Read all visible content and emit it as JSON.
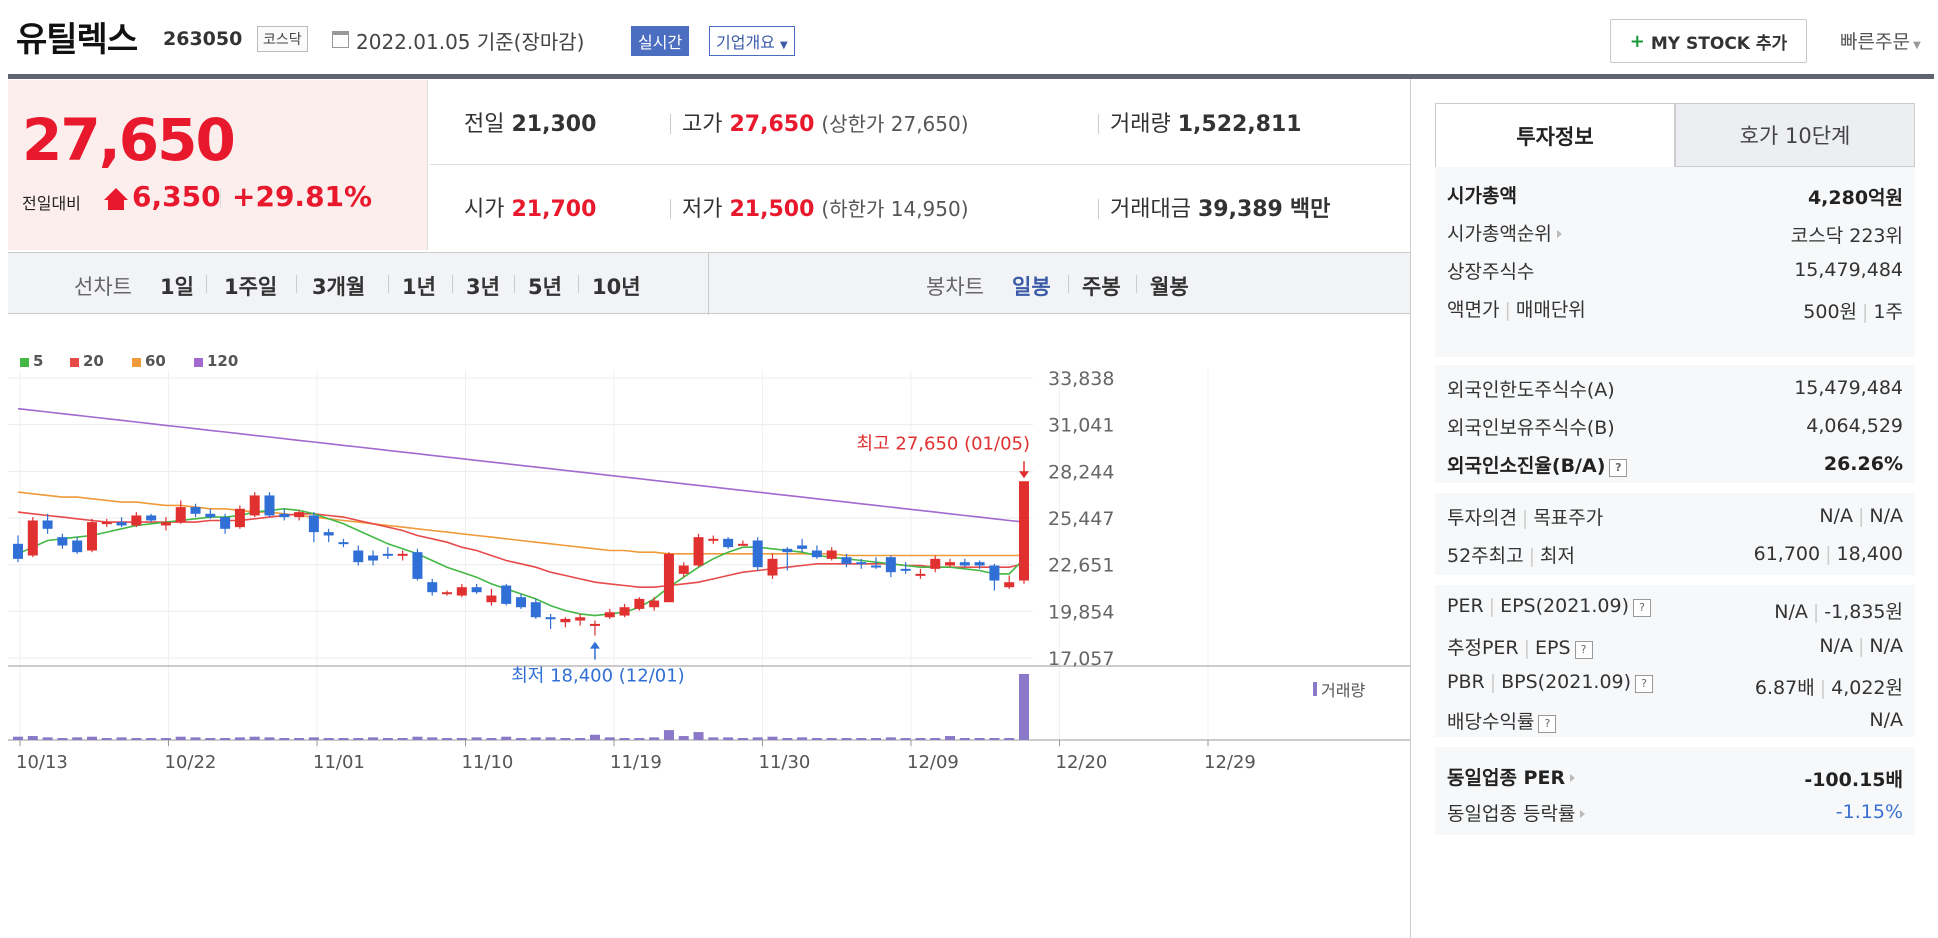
{
  "header": {
    "title": "유틸렉스",
    "code": "263050",
    "market": "코스닥",
    "date_text": "2022.01.05 기준(장마감)",
    "realtime": "실시간",
    "company_info": "기업개요",
    "mystock_button": "MY STOCK 추가",
    "quick_order": "빠른주문"
  },
  "price": {
    "current": "27,650",
    "change_label": "전일대비",
    "change": "6,350",
    "change_pct": "+29.81%"
  },
  "stats": {
    "prev_label": "전일",
    "prev": "21,300",
    "high_label": "고가",
    "high": "27,650",
    "high_limit": "(상한가 27,650)",
    "volume_label": "거래량",
    "volume": "1,522,811",
    "open_label": "시가",
    "open": "21,700",
    "low_label": "저가",
    "low": "21,500",
    "low_limit": "(하한가 14,950)",
    "amount_label": "거래대금",
    "amount": "39,389",
    "amount_unit": "백만"
  },
  "period_bar": {
    "line_label": "선차트",
    "line_periods": [
      "1일",
      "1주일",
      "3개월",
      "1년",
      "3년",
      "5년",
      "10년"
    ],
    "candle_label": "봉차트",
    "candle_periods": [
      "일봉",
      "주봉",
      "월봉"
    ],
    "active_candle": "일봉"
  },
  "chart_data": {
    "type": "candlestick",
    "legend": [
      "5",
      "20",
      "60",
      "120"
    ],
    "legend_colors": [
      "#44b844",
      "#e84a4a",
      "#f09a3a",
      "#a26ad0"
    ],
    "y_ticks": [
      33838,
      31041,
      28244,
      25447,
      22651,
      19854,
      17057
    ],
    "ylim": [
      17057,
      33838
    ],
    "x_ticks": [
      "10/13",
      "10/22",
      "11/01",
      "11/10",
      "11/19",
      "11/30",
      "12/09",
      "12/20",
      "12/29"
    ],
    "max_label": "최고 27,650 (01/05)",
    "min_label": "최저 18,400 (12/01)",
    "volume_label": "거래량",
    "candles": [
      [
        23900,
        23000,
        24400,
        22800
      ],
      [
        23200,
        25300,
        25500,
        23100
      ],
      [
        25300,
        24800,
        25700,
        24500
      ],
      [
        24300,
        23800,
        24500,
        23600
      ],
      [
        24100,
        23400,
        24300,
        23300
      ],
      [
        23500,
        25200,
        25400,
        23400
      ],
      [
        25100,
        25200,
        25400,
        24900
      ],
      [
        25200,
        25000,
        25500,
        24900
      ],
      [
        25000,
        25600,
        25800,
        24900
      ],
      [
        25600,
        25300,
        25700,
        25200
      ],
      [
        25000,
        25200,
        25500,
        24700
      ],
      [
        25200,
        26100,
        26500,
        25100
      ],
      [
        26100,
        25700,
        26300,
        25500
      ],
      [
        25700,
        25500,
        26000,
        25400
      ],
      [
        25500,
        24800,
        25700,
        24500
      ],
      [
        24900,
        26000,
        26200,
        24800
      ],
      [
        25600,
        26800,
        27000,
        25500
      ],
      [
        26800,
        25600,
        27000,
        25500
      ],
      [
        25700,
        25500,
        26000,
        25300
      ],
      [
        25500,
        25800,
        25900,
        25300
      ],
      [
        25600,
        24600,
        25800,
        24000
      ],
      [
        24600,
        24400,
        24800,
        24000
      ],
      [
        24000,
        23900,
        24200,
        23700
      ],
      [
        23500,
        22800,
        23800,
        22600
      ],
      [
        23200,
        22900,
        23500,
        22600
      ],
      [
        23300,
        23200,
        23700,
        23000
      ],
      [
        23300,
        23300,
        23500,
        22900
      ],
      [
        23400,
        21800,
        23600,
        21700
      ],
      [
        21600,
        21000,
        21800,
        20800
      ],
      [
        20900,
        21000,
        21100,
        20800
      ],
      [
        20800,
        21300,
        21500,
        20700
      ],
      [
        21300,
        21000,
        21500,
        20900
      ],
      [
        20400,
        20800,
        21200,
        20200
      ],
      [
        21400,
        20300,
        21500,
        20200
      ],
      [
        20700,
        20100,
        20900,
        20000
      ],
      [
        20400,
        19500,
        20600,
        19400
      ],
      [
        19500,
        19400,
        19700,
        18800
      ],
      [
        19200,
        19400,
        19500,
        18900
      ],
      [
        19300,
        19500,
        19700,
        19000
      ],
      [
        19000,
        19100,
        19300,
        18400
      ],
      [
        19500,
        19800,
        20000,
        19400
      ],
      [
        19600,
        20100,
        20300,
        19500
      ],
      [
        20000,
        20600,
        20700,
        19900
      ],
      [
        20100,
        20500,
        20700,
        19900
      ],
      [
        20400,
        23300,
        23400,
        20400
      ],
      [
        22100,
        22600,
        22800,
        21900
      ],
      [
        22600,
        24300,
        24500,
        22500
      ],
      [
        24100,
        24200,
        24400,
        23900
      ],
      [
        24200,
        23700,
        24300,
        23600
      ],
      [
        23900,
        23900,
        24100,
        23800
      ],
      [
        24100,
        22500,
        24300,
        22300
      ],
      [
        22000,
        23000,
        23300,
        21800
      ],
      [
        23600,
        23400,
        23700,
        22300
      ],
      [
        23800,
        23600,
        24200,
        23400
      ],
      [
        23500,
        23100,
        23800,
        23000
      ],
      [
        23000,
        23500,
        23700,
        22900
      ],
      [
        23100,
        22700,
        23300,
        22500
      ],
      [
        22800,
        22700,
        23000,
        22400
      ],
      [
        22600,
        22500,
        23100,
        22400
      ],
      [
        23100,
        22200,
        23200,
        21900
      ],
      [
        22400,
        22300,
        22800,
        22100
      ],
      [
        22000,
        22100,
        22400,
        21800
      ],
      [
        22400,
        23000,
        23200,
        22200
      ],
      [
        22600,
        22800,
        23000,
        22500
      ],
      [
        22800,
        22600,
        23000,
        22500
      ],
      [
        22800,
        22600,
        22900,
        22400
      ],
      [
        22600,
        21700,
        22700,
        21100
      ],
      [
        21300,
        21600,
        22000,
        21200
      ],
      [
        21700,
        27650,
        27650,
        21500
      ]
    ],
    "ma5": [
      23300,
      23700,
      24100,
      24200,
      24300,
      24400,
      24600,
      24800,
      25000,
      25100,
      25200,
      25300,
      25400,
      25500,
      25500,
      25600,
      25800,
      25900,
      26000,
      25900,
      25700,
      25400,
      25100,
      24700,
      24300,
      23900,
      23600,
      23300,
      22900,
      22500,
      22200,
      21900,
      21500,
      21200,
      20900,
      20600,
      20200,
      19900,
      19700,
      19600,
      19700,
      19800,
      20100,
      20600,
      21300,
      21900,
      22500,
      23000,
      23400,
      23700,
      23700,
      23600,
      23500,
      23400,
      23200,
      23100,
      23000,
      22900,
      22800,
      22700,
      22600,
      22500,
      22500,
      22500,
      22400,
      22300,
      22100,
      22100,
      23000
    ],
    "ma20": [
      25800,
      25700,
      25600,
      25500,
      25400,
      25300,
      25200,
      25200,
      25200,
      25200,
      25200,
      25200,
      25200,
      25300,
      25300,
      25300,
      25400,
      25500,
      25600,
      25700,
      25700,
      25600,
      25500,
      25300,
      25100,
      24900,
      24700,
      24400,
      24200,
      24000,
      23700,
      23500,
      23200,
      22900,
      22700,
      22500,
      22200,
      22000,
      21800,
      21600,
      21500,
      21400,
      21300,
      21300,
      21400,
      21500,
      21600,
      21800,
      22000,
      22200,
      22300,
      22400,
      22500,
      22600,
      22700,
      22700,
      22700,
      22700,
      22700,
      22700,
      22600,
      22600,
      22500,
      22500,
      22500,
      22500,
      22500,
      22500,
      22700
    ],
    "ma60": [
      27000,
      26900,
      26800,
      26700,
      26700,
      26600,
      26500,
      26400,
      26400,
      26300,
      26200,
      26200,
      26100,
      26000,
      26000,
      25900,
      25800,
      25800,
      25700,
      25600,
      25500,
      25400,
      25300,
      25200,
      25100,
      25000,
      24900,
      24800,
      24700,
      24600,
      24500,
      24400,
      24300,
      24200,
      24100,
      24000,
      23900,
      23800,
      23700,
      23600,
      23500,
      23500,
      23400,
      23400,
      23300,
      23300,
      23300,
      23300,
      23300,
      23300,
      23300,
      23300,
      23300,
      23300,
      23300,
      23300,
      23200,
      23200,
      23200,
      23200,
      23200,
      23200,
      23200,
      23200,
      23200,
      23200,
      23200,
      23200,
      23200
    ],
    "ma120": [
      32000,
      31900,
      31800,
      31700,
      31600,
      31500,
      31400,
      31300,
      31200,
      31100,
      31000,
      30900,
      30800,
      30700,
      30600,
      30500,
      30400,
      30300,
      30200,
      30100,
      30000,
      29900,
      29800,
      29700,
      29600,
      29500,
      29400,
      29300,
      29200,
      29100,
      29000,
      28900,
      28800,
      28700,
      28600,
      28500,
      28400,
      28300,
      28200,
      28100,
      28000,
      27900,
      27800,
      27700,
      27600,
      27500,
      27400,
      27300,
      27200,
      27100,
      27000,
      26900,
      26800,
      26700,
      26600,
      26500,
      26400,
      26300,
      26200,
      26100,
      26000,
      25900,
      25800,
      25700,
      25600,
      25500,
      25400,
      25300,
      25200
    ],
    "volumes": [
      5,
      6,
      4,
      3,
      4,
      5,
      3,
      4,
      3,
      3,
      3,
      5,
      4,
      3,
      3,
      4,
      5,
      4,
      3,
      3,
      4,
      3,
      3,
      3,
      4,
      3,
      3,
      5,
      4,
      3,
      3,
      4,
      3,
      5,
      3,
      4,
      4,
      3,
      3,
      8,
      4,
      3,
      3,
      4,
      15,
      6,
      12,
      4,
      4,
      3,
      4,
      5,
      3,
      4,
      3,
      3,
      3,
      3,
      3,
      4,
      3,
      3,
      3,
      6,
      3,
      3,
      3,
      3,
      100
    ]
  },
  "tabs": {
    "invest": "투자정보",
    "hoga": "호가 10단계"
  },
  "info": {
    "mcap_label": "시가총액",
    "mcap": "4,280억원",
    "rank_label": "시가총액순위",
    "rank": "코스닥 223위",
    "shares_label": "상장주식수",
    "shares": "15,479,484",
    "par_label": "액면가",
    "unit_label": "매매단위",
    "par": "500원",
    "unit": "1주",
    "foreign_limit_label": "외국인한도주식수(A)",
    "foreign_limit": "15,479,484",
    "foreign_hold_label": "외국인보유주식수(B)",
    "foreign_hold": "4,064,529",
    "foreign_ratio_label": "외국인소진율(B/A)",
    "foreign_ratio": "26.26%",
    "opinion_label": "투자의견",
    "target_label": "목표주가",
    "opinion": "N/A",
    "target": "N/A",
    "w52high_label": "52주최고",
    "w52low_label": "최저",
    "w52high": "61,700",
    "w52low": "18,400",
    "per_label": "PER",
    "eps_label": "EPS(2021.09)",
    "per": "N/A",
    "eps": "-1,835원",
    "eper_label": "추정PER",
    "eeps_label": "EPS",
    "eper": "N/A",
    "eeps": "N/A",
    "pbr_label": "PBR",
    "bps_label": "BPS(2021.09)",
    "pbr": "6.87배",
    "bps": "4,022원",
    "div_label": "배당수익률",
    "div": "N/A",
    "ind_per_label": "동일업종 PER",
    "ind_per": "-100.15배",
    "ind_chg_label": "동일업종 등락률",
    "ind_chg": "-1.15%"
  }
}
